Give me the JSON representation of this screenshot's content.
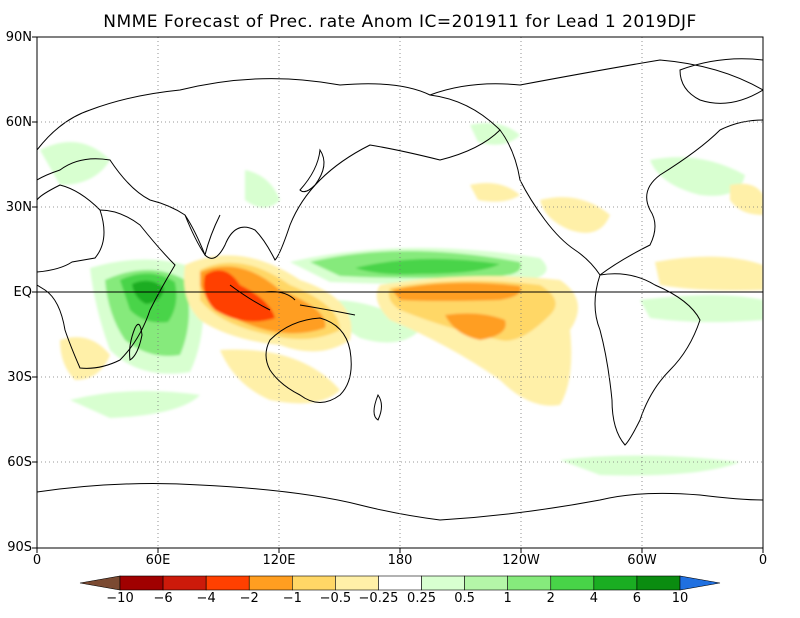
{
  "title": "NMME Forecast of Prec. rate Anom IC=201911 for Lead 1 2019DJF",
  "lat_labels": [
    "90N",
    "60N",
    "30N",
    "EQ",
    "30S",
    "60S",
    "90S"
  ],
  "lon_labels": [
    "0",
    "60E",
    "120E",
    "180",
    "120W",
    "60W",
    "0"
  ],
  "colorbar": {
    "colors": [
      "#7b4a32",
      "#a00000",
      "#cc1a0a",
      "#ff4000",
      "#ff9e20",
      "#ffd766",
      "#fff0a8",
      "#ffffff",
      "#d8ffd0",
      "#b4f6a8",
      "#86ea7c",
      "#48d448",
      "#1aad22",
      "#0a8c10",
      "#2070e0"
    ],
    "labels": [
      "-10",
      "-6",
      "-4",
      "-2",
      "-1",
      "-0.5",
      "-0.25",
      "0.25",
      "0.5",
      "1",
      "2",
      "4",
      "6",
      "10"
    ]
  },
  "map": {
    "variable": "Prec. rate Anom",
    "positive_color": "#48d448",
    "negative_color": "#ff9e20",
    "equator_line": true,
    "gridlines": "dotted"
  }
}
